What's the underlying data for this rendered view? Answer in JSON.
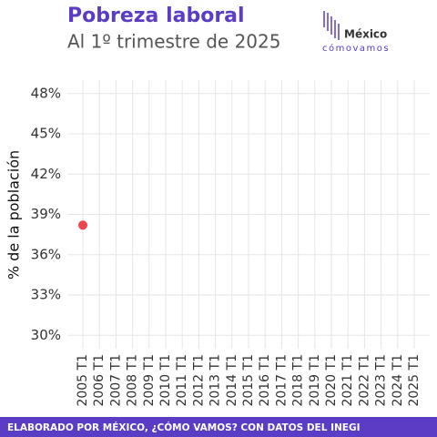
{
  "chart_data": {
    "type": "scatter",
    "title": "Pobreza laboral",
    "subtitle": "Al 1º trimestre de 2025",
    "y_label": "% de la población",
    "footer": "ELABORADO POR MÉXICO, ¿CÓMO VAMOS? CON DATOS DEL INEGI",
    "logo": {
      "name": "México",
      "tagline": "cómovamos"
    },
    "categories": [
      "2005 T1",
      "2006 T1",
      "2007 T1",
      "2008 T1",
      "2009 T1",
      "2010 T1",
      "2011 T1",
      "2012 T1",
      "2013 T1",
      "2014 T1",
      "2015 T1",
      "2016 T1",
      "2017 T1",
      "2018 T1",
      "2019 T1",
      "2020 T1",
      "2021 T1",
      "2022 T1",
      "2023 T1",
      "2024 T1",
      "2025 T1"
    ],
    "values": [
      38.2,
      null,
      null,
      null,
      null,
      null,
      null,
      null,
      null,
      null,
      null,
      null,
      null,
      null,
      null,
      null,
      null,
      null,
      null,
      null,
      null
    ],
    "color": "#f0444f",
    "ylim": [
      29,
      49
    ],
    "yticks": [
      {
        "value": 30,
        "label": "30%"
      },
      {
        "value": 33,
        "label": "33%"
      },
      {
        "value": 36,
        "label": "36%"
      },
      {
        "value": 39,
        "label": "39%"
      },
      {
        "value": 42,
        "label": "42%"
      },
      {
        "value": 45,
        "label": "45%"
      },
      {
        "value": 48,
        "label": "48%"
      }
    ],
    "grid": true
  }
}
